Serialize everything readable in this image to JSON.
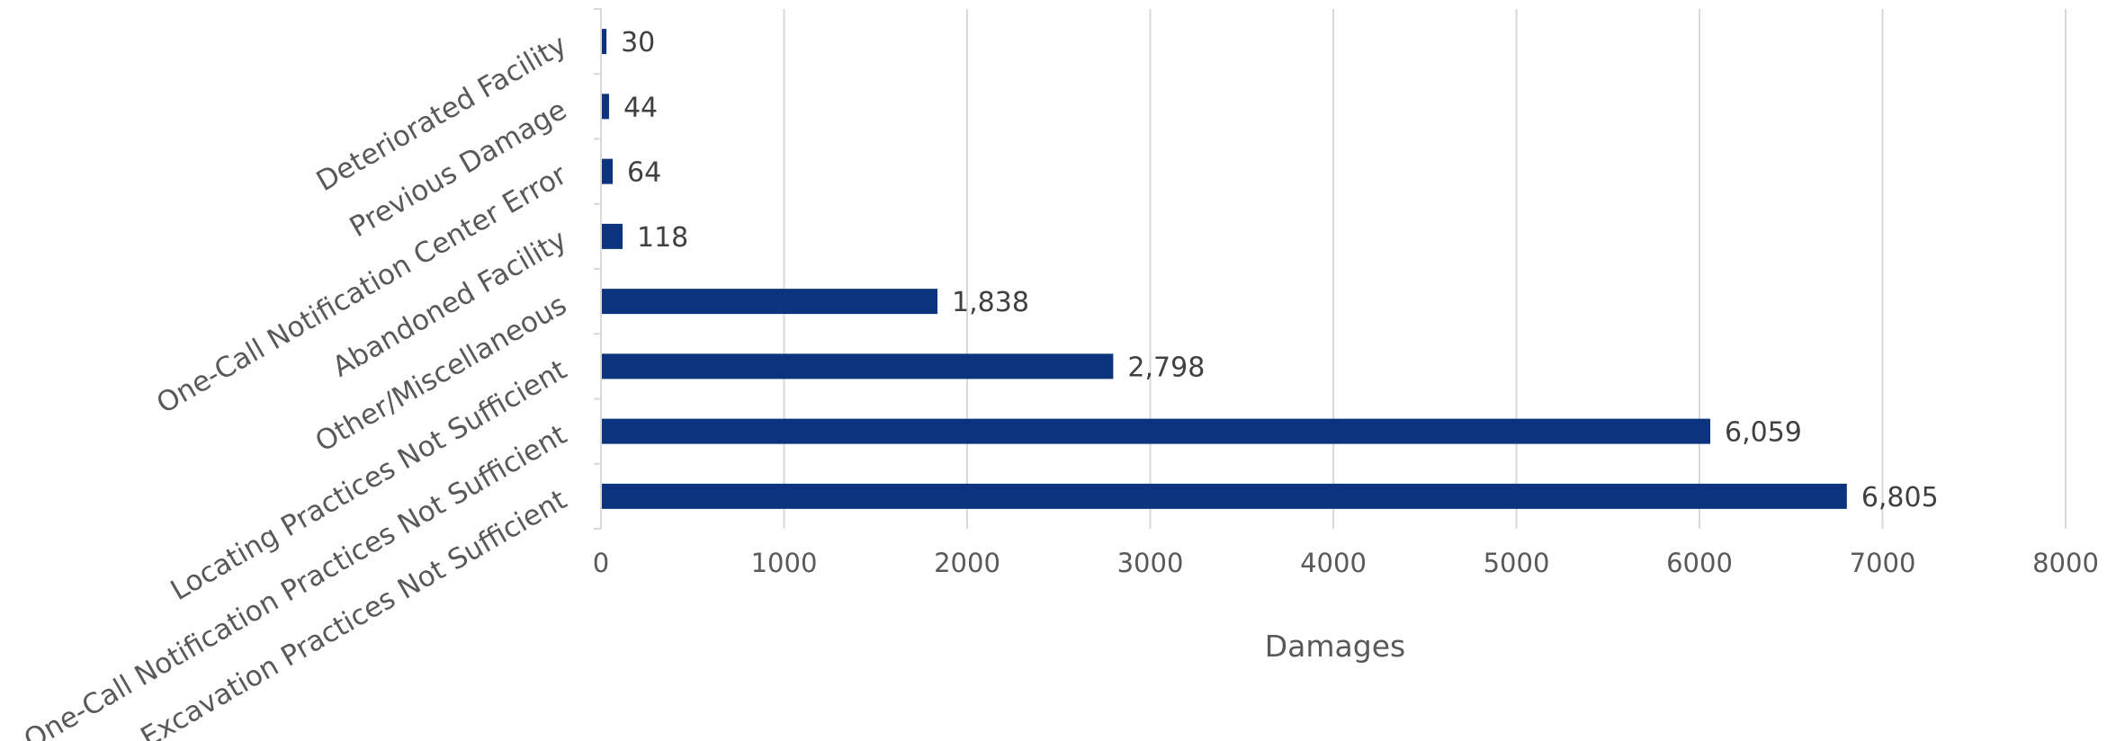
{
  "chart_data": {
    "type": "bar",
    "orientation": "horizontal",
    "categories": [
      "Excavation Practices Not Sufficient",
      "One-Call Notification Practices Not Sufficient",
      "Locating Practices Not Sufficient",
      "Other/Miscellaneous",
      "Abandoned Facility",
      "One-Call Notification Center Error",
      "Previous Damage",
      "Deteriorated Facility"
    ],
    "values": [
      6805,
      6059,
      2798,
      1838,
      118,
      64,
      44,
      30
    ],
    "data_labels": [
      "6,805",
      "6,059",
      "2,798",
      "1,838",
      "118",
      "64",
      "44",
      "30"
    ],
    "title": "",
    "xlabel": "Damages",
    "ylabel": "",
    "xlim": [
      0,
      8000
    ],
    "x_ticks": [
      0,
      1000,
      2000,
      3000,
      4000,
      5000,
      6000,
      7000,
      8000
    ],
    "x_tick_labels": [
      "0",
      "1000",
      "2000",
      "3000",
      "4000",
      "5000",
      "6000",
      "7000",
      "8000"
    ],
    "grid": "vertical",
    "legend": "none",
    "bar_color": "#0c347e",
    "grid_color": "#d9d9d9",
    "text_color": "#595959"
  }
}
